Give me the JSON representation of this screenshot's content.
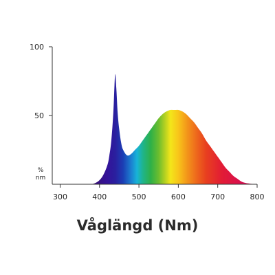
{
  "chart_data": {
    "type": "area",
    "title": "",
    "xlabel": "Våglängd (Nm)",
    "ylabel": "",
    "y_unit_top": "%",
    "y_unit_bottom": "nm",
    "xlim": [
      280,
      800
    ],
    "ylim": [
      0,
      100
    ],
    "x_ticks": [
      300,
      400,
      500,
      600,
      700,
      800
    ],
    "x_tick_labels": [
      "300",
      "400",
      "500",
      "600",
      "700",
      "800"
    ],
    "y_ticks": [
      50,
      100
    ],
    "y_tick_labels": [
      "50",
      "100"
    ],
    "grid": false,
    "fill": "visible-spectrum-gradient",
    "series": [
      {
        "x": [
          380,
          390,
          400,
          410,
          420,
          425,
          430,
          435,
          438,
          440,
          443,
          446,
          450,
          455,
          460,
          470,
          480,
          490,
          500,
          510,
          520,
          530,
          540,
          550,
          560,
          570,
          580,
          590,
          600,
          610,
          620,
          630,
          640,
          650,
          660,
          670,
          680,
          690,
          700,
          710,
          720,
          730,
          740,
          750,
          760,
          770,
          780,
          790,
          800
        ],
        "values": [
          0,
          1,
          3,
          7,
          14,
          21,
          32,
          52,
          72,
          80,
          68,
          52,
          40,
          30,
          25,
          21,
          22,
          25,
          28,
          32,
          36,
          40,
          44,
          48,
          51,
          53,
          54,
          54,
          54,
          53,
          51,
          48,
          45,
          41,
          37,
          32,
          28,
          24,
          20,
          16,
          12,
          9,
          6,
          4,
          2,
          1,
          0.5,
          0.2,
          0
        ]
      }
    ]
  }
}
